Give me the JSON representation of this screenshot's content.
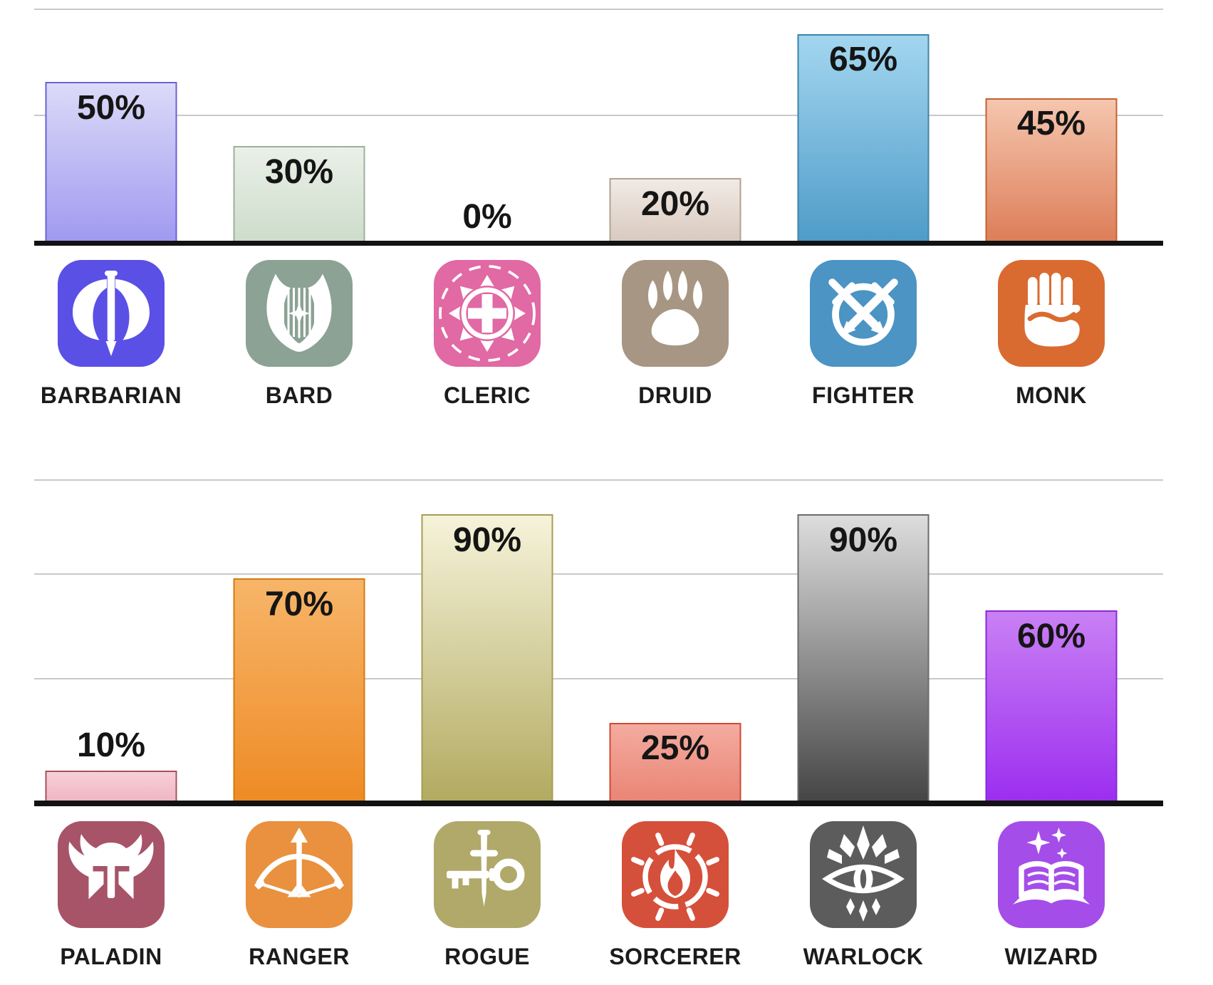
{
  "chart_data": {
    "type": "bar",
    "title": "",
    "unit": "%",
    "ylim": [
      0,
      100
    ],
    "grid": true,
    "legend": "none",
    "rows": [
      {
        "categories": [
          "BARBARIAN",
          "BARD",
          "CLERIC",
          "DRUID",
          "FIGHTER",
          "MONK"
        ],
        "values": [
          50,
          30,
          0,
          20,
          65,
          45
        ]
      },
      {
        "categories": [
          "PALADIN",
          "RANGER",
          "ROGUE",
          "SORCERER",
          "WARLOCK",
          "WIZARD"
        ],
        "values": [
          10,
          70,
          90,
          25,
          90,
          60
        ]
      }
    ]
  },
  "colors": {
    "gridline": "#c9c9c9",
    "axis_line": "#121212",
    "value_text": "#151515",
    "label_text": "#1b1b1b",
    "background": "#ffffff"
  },
  "classes": [
    {
      "name": "BARBARIAN",
      "value": 50,
      "value_label": "50%",
      "icon": "battle-axe-icon",
      "icon_bg": "#5a50e6",
      "bar_top": "#dcdaf8",
      "bar_bottom": "#a09af0",
      "bar_border": "#6a63d2"
    },
    {
      "name": "BARD",
      "value": 30,
      "value_label": "30%",
      "icon": "lyre-icon",
      "icon_bg": "#8ba295",
      "bar_top": "#eaf0e8",
      "bar_bottom": "#cdddcb",
      "bar_border": "#9cb19a"
    },
    {
      "name": "CLERIC",
      "value": 0,
      "value_label": "0%",
      "icon": "holy-symbol-icon",
      "icon_bg": "#e169a4",
      "bar_top": "#f9d9e8",
      "bar_bottom": "#f0aecd",
      "bar_border": "#d05f96"
    },
    {
      "name": "DRUID",
      "value": 20,
      "value_label": "20%",
      "icon": "paw-print-icon",
      "icon_bg": "#a79683",
      "bar_top": "#f1eae5",
      "bar_bottom": "#d9cabf",
      "bar_border": "#b4a18e"
    },
    {
      "name": "FIGHTER",
      "value": 65,
      "value_label": "65%",
      "icon": "crossed-swords-icon",
      "icon_bg": "#4b94c4",
      "bar_top": "#a3d6ef",
      "bar_bottom": "#4f9cc9",
      "bar_border": "#3e84ae"
    },
    {
      "name": "MONK",
      "value": 45,
      "value_label": "45%",
      "icon": "fist-icon",
      "icon_bg": "#d96b31",
      "bar_top": "#f5c6ae",
      "bar_bottom": "#dd7e59",
      "bar_border": "#c4622e"
    },
    {
      "name": "PALADIN",
      "value": 10,
      "value_label": "10%",
      "icon": "winged-helmet-icon",
      "icon_bg": "#a75368",
      "bar_top": "#f7cfd9",
      "bar_bottom": "#efb5c3",
      "bar_border": "#a4525f"
    },
    {
      "name": "RANGER",
      "value": 70,
      "value_label": "70%",
      "icon": "bow-arrow-icon",
      "icon_bg": "#e9913e",
      "bar_top": "#f7b569",
      "bar_bottom": "#ee8b25",
      "bar_border": "#d8790f"
    },
    {
      "name": "ROGUE",
      "value": 90,
      "value_label": "90%",
      "icon": "key-dagger-icon",
      "icon_bg": "#b0a96a",
      "bar_top": "#f6f3da",
      "bar_bottom": "#b2aa60",
      "bar_border": "#a59d55"
    },
    {
      "name": "SORCERER",
      "value": 25,
      "value_label": "25%",
      "icon": "flame-icon",
      "icon_bg": "#d5503a",
      "bar_top": "#f4ab9f",
      "bar_bottom": "#e98576",
      "bar_border": "#cf4a31"
    },
    {
      "name": "WARLOCK",
      "value": 90,
      "value_label": "90%",
      "icon": "eldritch-eye-icon",
      "icon_bg": "#5c5c5c",
      "bar_top": "#dddddd",
      "bar_bottom": "#454545",
      "bar_border": "#6b6b6b"
    },
    {
      "name": "WIZARD",
      "value": 60,
      "value_label": "60%",
      "icon": "spellbook-icon",
      "icon_bg": "#a44de8",
      "bar_top": "#c980f4",
      "bar_bottom": "#9c2ef0",
      "bar_border": "#8928d8"
    }
  ]
}
